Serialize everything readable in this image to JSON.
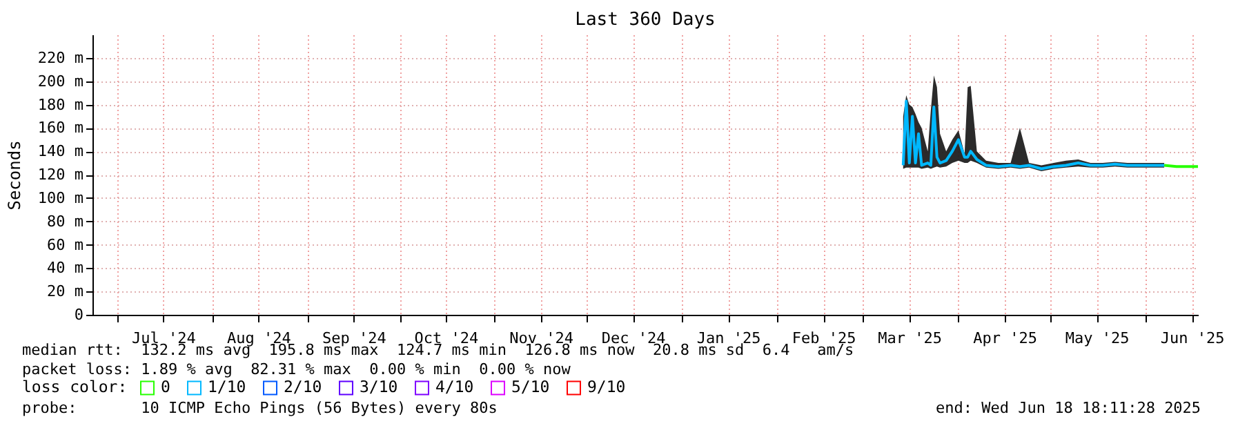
{
  "chart_data": {
    "type": "line",
    "title": "Last 360 Days",
    "ylabel": "Seconds",
    "xlim": [
      "2024-06-23",
      "2025-06-18"
    ],
    "xticks": [
      {
        "value": "2024-07-01",
        "label": null
      },
      {
        "value": "2024-07-16",
        "label": "Jul '24"
      },
      {
        "value": "2024-08-01",
        "label": null
      },
      {
        "value": "2024-08-16",
        "label": "Aug '24"
      },
      {
        "value": "2024-09-01",
        "label": null
      },
      {
        "value": "2024-09-16",
        "label": "Sep '24"
      },
      {
        "value": "2024-10-01",
        "label": null
      },
      {
        "value": "2024-10-16",
        "label": "Oct '24"
      },
      {
        "value": "2024-11-01",
        "label": null
      },
      {
        "value": "2024-11-16",
        "label": "Nov '24"
      },
      {
        "value": "2024-12-01",
        "label": null
      },
      {
        "value": "2024-12-16",
        "label": "Dec '24"
      },
      {
        "value": "2025-01-01",
        "label": null
      },
      {
        "value": "2025-01-16",
        "label": "Jan '25"
      },
      {
        "value": "2025-02-01",
        "label": null
      },
      {
        "value": "2025-02-16",
        "label": "Feb '25"
      },
      {
        "value": "2025-03-01",
        "label": null
      },
      {
        "value": "2025-03-16",
        "label": "Mar '25"
      },
      {
        "value": "2025-04-01",
        "label": null
      },
      {
        "value": "2025-04-16",
        "label": "Apr '25"
      },
      {
        "value": "2025-05-01",
        "label": null
      },
      {
        "value": "2025-05-16",
        "label": "May '25"
      },
      {
        "value": "2025-06-01",
        "label": null
      },
      {
        "value": "2025-06-16",
        "label": "Jun '25"
      }
    ],
    "ylim": [
      0,
      240
    ],
    "yticks": [
      {
        "value": 0,
        "label": "0"
      },
      {
        "value": 20,
        "label": "20 m"
      },
      {
        "value": 40,
        "label": "40 m"
      },
      {
        "value": 60,
        "label": "60 m"
      },
      {
        "value": 80,
        "label": "80 m"
      },
      {
        "value": 100,
        "label": "100 m"
      },
      {
        "value": 120,
        "label": "120 m"
      },
      {
        "value": 140,
        "label": "140 m"
      },
      {
        "value": 160,
        "label": "160 m"
      },
      {
        "value": 180,
        "label": "180 m"
      },
      {
        "value": 200,
        "label": "200 m"
      },
      {
        "value": 220,
        "label": "220 m"
      }
    ],
    "grid": true,
    "legend": "bottom left",
    "legend_title": "loss color:",
    "series": [
      {
        "name": "0",
        "color": "#26ff00",
        "x": [
          "2025-06-07",
          "2025-06-11",
          "2025-06-14",
          "2025-06-18"
        ],
        "values": [
          128,
          127,
          127,
          127
        ]
      },
      {
        "name": "1/10",
        "color": "#00b8ff",
        "x": [
          "2025-03-14",
          "2025-03-15",
          "2025-03-16",
          "2025-03-17",
          "2025-03-18",
          "2025-03-19",
          "2025-03-20",
          "2025-03-22",
          "2025-03-23",
          "2025-03-24",
          "2025-03-25",
          "2025-03-26",
          "2025-03-28",
          "2025-03-30",
          "2025-04-01",
          "2025-04-03",
          "2025-04-04",
          "2025-04-05",
          "2025-04-07",
          "2025-04-10",
          "2025-04-14",
          "2025-04-18",
          "2025-04-21",
          "2025-04-24",
          "2025-04-28",
          "2025-05-02",
          "2025-05-06",
          "2025-05-10",
          "2025-05-14",
          "2025-05-18",
          "2025-05-22",
          "2025-05-26",
          "2025-05-30",
          "2025-06-03",
          "2025-06-07"
        ],
        "values": [
          128,
          183,
          130,
          170,
          130,
          155,
          128,
          130,
          128,
          178,
          135,
          130,
          132,
          140,
          150,
          135,
          135,
          140,
          133,
          128,
          127,
          128,
          127,
          128,
          125,
          127,
          128,
          130,
          128,
          128,
          129,
          128,
          128,
          128,
          128
        ],
        "lower": [
          125,
          126,
          126,
          126,
          126,
          126,
          125,
          126,
          125,
          126,
          127,
          126,
          127,
          130,
          132,
          130,
          130,
          132,
          130,
          126,
          125,
          126,
          125,
          126,
          123,
          125,
          126,
          127,
          126,
          126,
          127,
          126,
          126,
          126,
          126
        ],
        "upper": [
          170,
          188,
          180,
          178,
          172,
          165,
          160,
          140,
          175,
          205,
          195,
          155,
          140,
          150,
          158,
          138,
          195,
          196,
          140,
          132,
          130,
          130,
          160,
          130,
          128,
          130,
          132,
          133,
          130,
          130,
          131,
          130,
          130,
          130,
          130
        ]
      },
      {
        "name": "2/10",
        "color": "#0059ff"
      },
      {
        "name": "3/10",
        "color": "#5e00ff"
      },
      {
        "name": "4/10",
        "color": "#7e00ff"
      },
      {
        "name": "5/10",
        "color": "#dd00ff"
      },
      {
        "name": "9/10",
        "color": "#ff0000"
      }
    ],
    "annotations": [
      "median rtt:  132.2 ms avg  195.8 ms max  124.7 ms min  126.8 ms now  20.8 ms sd  6.4   am/s",
      "packet loss: 1.89 % avg  82.31 % max  0.00 % min  0.00 % now",
      "probe:       10 ICMP Echo Pings (56 Bytes) every 80s",
      "end: Wed Jun 18 18:11:28 2025"
    ]
  }
}
